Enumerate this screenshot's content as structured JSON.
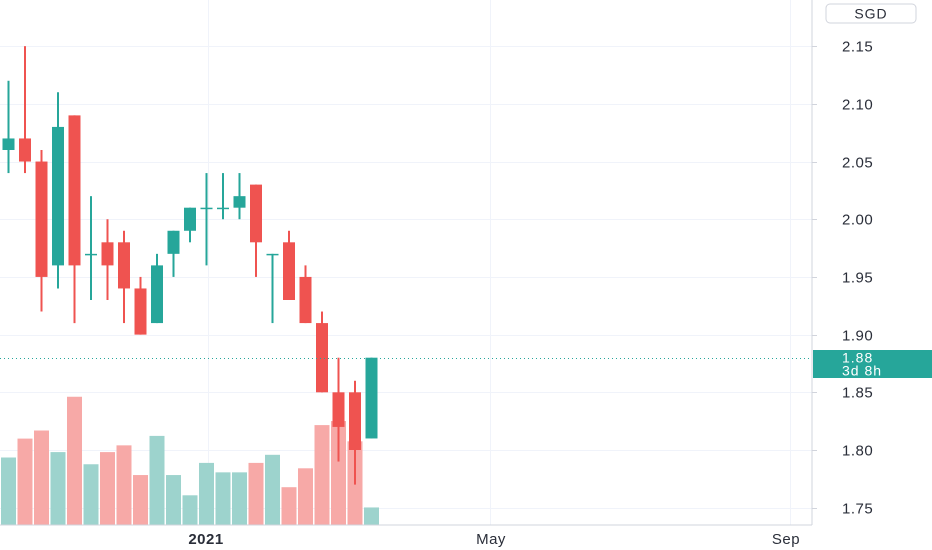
{
  "currency_badge": "SGD",
  "last_price": {
    "value": "1.88",
    "countdown": "3d 8h",
    "color": "#26a69a"
  },
  "colors": {
    "up": "#26a69a",
    "down": "#ef5350",
    "up_volume": "#9dd3cd",
    "down_volume": "#f7a9a7",
    "grid": "#f0f3fa",
    "axis_text": "#2a2e39"
  },
  "chart_data": {
    "type": "candlestick",
    "title": "",
    "currency": "SGD",
    "y_axis": {
      "ticks": [
        2.15,
        2.1,
        2.05,
        2.0,
        1.95,
        1.9,
        1.85,
        1.8,
        1.75
      ],
      "tick_labels": [
        "2.15",
        "2.10",
        "2.05",
        "2.00",
        "1.95",
        "1.90",
        "1.85",
        "1.80",
        "1.75"
      ],
      "range": [
        1.735,
        2.19
      ]
    },
    "x_axis": {
      "labels": [
        "2021",
        "May",
        "Sep"
      ],
      "major_label": "2021"
    },
    "grid": true,
    "candles": [
      {
        "open": 2.06,
        "high": 2.12,
        "low": 2.04,
        "close": 2.07
      },
      {
        "open": 2.07,
        "high": 2.15,
        "low": 2.04,
        "close": 2.05
      },
      {
        "open": 2.05,
        "high": 2.06,
        "low": 1.92,
        "close": 1.95
      },
      {
        "open": 1.96,
        "high": 2.11,
        "low": 1.94,
        "close": 2.08
      },
      {
        "open": 2.09,
        "high": 2.09,
        "low": 1.91,
        "close": 1.96
      },
      {
        "open": 1.97,
        "high": 2.02,
        "low": 1.93,
        "close": 1.97
      },
      {
        "open": 1.98,
        "high": 2.0,
        "low": 1.93,
        "close": 1.96
      },
      {
        "open": 1.98,
        "high": 1.99,
        "low": 1.91,
        "close": 1.94
      },
      {
        "open": 1.94,
        "high": 1.95,
        "low": 1.9,
        "close": 1.9
      },
      {
        "open": 1.91,
        "high": 1.97,
        "low": 1.91,
        "close": 1.96
      },
      {
        "open": 1.97,
        "high": 1.99,
        "low": 1.95,
        "close": 1.99
      },
      {
        "open": 1.99,
        "high": 2.01,
        "low": 1.98,
        "close": 2.01
      },
      {
        "open": 2.01,
        "high": 2.04,
        "low": 1.96,
        "close": 2.01
      },
      {
        "open": 2.01,
        "high": 2.04,
        "low": 2.0,
        "close": 2.01
      },
      {
        "open": 2.01,
        "high": 2.04,
        "low": 2.0,
        "close": 2.02
      },
      {
        "open": 2.03,
        "high": 2.03,
        "low": 1.95,
        "close": 1.98
      },
      {
        "open": 1.97,
        "high": 1.97,
        "low": 1.91,
        "close": 1.97
      },
      {
        "open": 1.98,
        "high": 1.99,
        "low": 1.93,
        "close": 1.93
      },
      {
        "open": 1.95,
        "high": 1.96,
        "low": 1.91,
        "close": 1.91
      },
      {
        "open": 1.91,
        "high": 1.92,
        "low": 1.85,
        "close": 1.85
      },
      {
        "open": 1.85,
        "high": 1.88,
        "low": 1.79,
        "close": 1.82
      },
      {
        "open": 1.85,
        "high": 1.86,
        "low": 1.77,
        "close": 1.8
      },
      {
        "open": 1.81,
        "high": 1.88,
        "low": 1.81,
        "close": 1.88
      }
    ],
    "volume": [
      {
        "value": 0.5,
        "direction": "up"
      },
      {
        "value": 0.64,
        "direction": "down"
      },
      {
        "value": 0.7,
        "direction": "down"
      },
      {
        "value": 0.54,
        "direction": "up"
      },
      {
        "value": 0.95,
        "direction": "down"
      },
      {
        "value": 0.45,
        "direction": "up"
      },
      {
        "value": 0.54,
        "direction": "down"
      },
      {
        "value": 0.59,
        "direction": "down"
      },
      {
        "value": 0.37,
        "direction": "down"
      },
      {
        "value": 0.66,
        "direction": "up"
      },
      {
        "value": 0.37,
        "direction": "up"
      },
      {
        "value": 0.22,
        "direction": "up"
      },
      {
        "value": 0.46,
        "direction": "up"
      },
      {
        "value": 0.39,
        "direction": "up"
      },
      {
        "value": 0.39,
        "direction": "up"
      },
      {
        "value": 0.46,
        "direction": "down"
      },
      {
        "value": 0.52,
        "direction": "up"
      },
      {
        "value": 0.28,
        "direction": "down"
      },
      {
        "value": 0.42,
        "direction": "down"
      },
      {
        "value": 0.74,
        "direction": "down"
      },
      {
        "value": 0.77,
        "direction": "down"
      },
      {
        "value": 0.62,
        "direction": "down"
      },
      {
        "value": 0.13,
        "direction": "up"
      }
    ]
  }
}
